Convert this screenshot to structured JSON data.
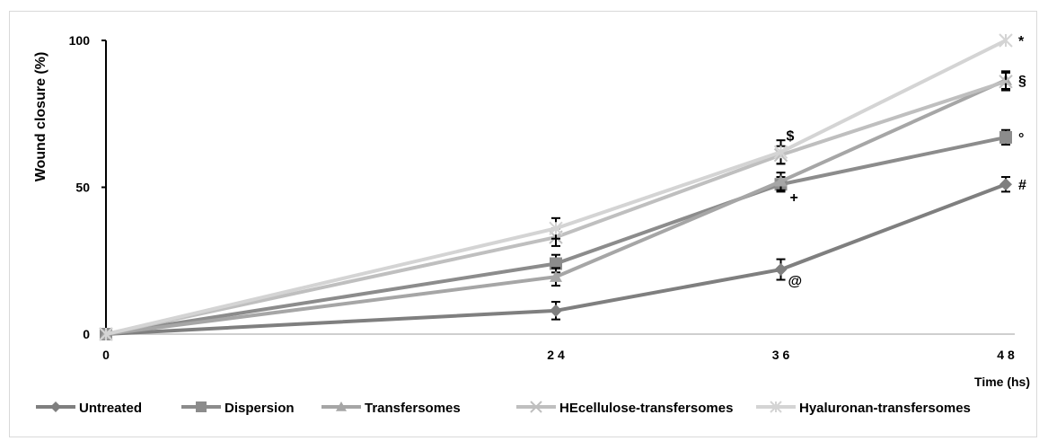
{
  "chart_data": {
    "type": "line",
    "title": "",
    "xlabel": "Time (hs)",
    "ylabel": "Wound closure (%)",
    "x": [
      0,
      24,
      36,
      48
    ],
    "x_tick_labels": [
      "0",
      "2 4",
      "3 6",
      "4 8"
    ],
    "y_ticks": [
      0,
      50,
      100
    ],
    "y_tick_labels": [
      "0",
      "50",
      "100"
    ],
    "ylim": [
      0,
      100
    ],
    "grid": false,
    "legend_position": "bottom",
    "series": [
      {
        "name": "Untreated",
        "marker": "diamond",
        "color": "#7f7f7f",
        "values": [
          0,
          8,
          22,
          51
        ],
        "errors": [
          0,
          3,
          3.5,
          2.5
        ],
        "end_annotation": "#",
        "annotations": [
          {
            "x": 36,
            "text": "@"
          }
        ]
      },
      {
        "name": "Dispersion",
        "marker": "square",
        "color": "#8c8c8c",
        "values": [
          0,
          24,
          51,
          67
        ],
        "errors": [
          0,
          3,
          2.5,
          2.5
        ],
        "end_annotation": "°",
        "annotations": [
          {
            "x": 36,
            "text": "+"
          }
        ]
      },
      {
        "name": "Transfersomes",
        "marker": "triangle",
        "color": "#a6a6a6",
        "values": [
          0,
          19.5,
          52,
          86.5
        ],
        "errors": [
          0,
          3,
          3,
          3
        ],
        "end_annotation": "§",
        "annotations": []
      },
      {
        "name": "HEcellulose-transfersomes",
        "marker": "x",
        "color": "#bfbfbf",
        "values": [
          0,
          33,
          61,
          86
        ],
        "errors": [
          0,
          3,
          3,
          3
        ],
        "end_annotation": "",
        "annotations": [
          {
            "x": 36,
            "text": "$"
          }
        ]
      },
      {
        "name": "Hyaluronan-transfersomes",
        "marker": "star",
        "color": "#d4d4d4",
        "values": [
          0,
          36,
          62,
          100
        ],
        "errors": [
          0,
          3.5,
          4,
          0
        ],
        "end_annotation": "*",
        "annotations": []
      }
    ]
  }
}
